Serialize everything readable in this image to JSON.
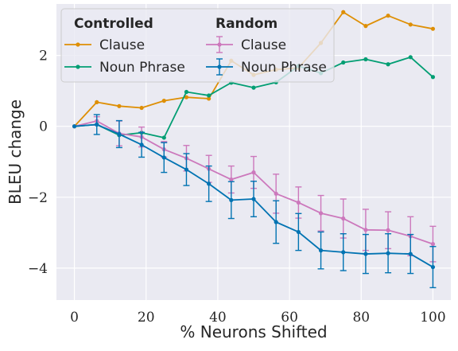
{
  "chart_data": {
    "type": "line",
    "xlabel": "% Neurons Shifted",
    "ylabel": "BLEU change",
    "xlim": [
      -5,
      105
    ],
    "ylim": [
      -4.9,
      3.45
    ],
    "xticks": [
      0,
      20,
      40,
      60,
      80,
      100
    ],
    "yticks": [
      -4,
      -2,
      0,
      2
    ],
    "grid": true,
    "legend": {
      "placement": "top-left",
      "group_titles": [
        "Controlled",
        "Random"
      ],
      "entries": [
        "Clause",
        "Noun Phrase",
        "Clause",
        "Noun Phrase"
      ]
    },
    "x": [
      0,
      6.25,
      12.5,
      18.75,
      25,
      31.25,
      37.5,
      43.75,
      50,
      56.25,
      62.5,
      68.75,
      75,
      81.25,
      87.5,
      93.75,
      100
    ],
    "series": [
      {
        "name": "Clause",
        "group": "Controlled",
        "color": "#de8f05",
        "values": [
          0.0,
          0.68,
          0.57,
          0.52,
          0.72,
          0.82,
          0.78,
          1.85,
          1.45,
          1.6,
          1.65,
          2.35,
          3.22,
          2.83,
          3.12,
          2.87,
          2.75
        ]
      },
      {
        "name": "Noun Phrase",
        "group": "Controlled",
        "color": "#029e73",
        "values": [
          0.0,
          0.05,
          -0.25,
          -0.18,
          -0.32,
          0.97,
          0.87,
          1.23,
          1.09,
          1.24,
          1.7,
          1.5,
          1.8,
          1.89,
          1.75,
          1.95,
          1.39
        ]
      },
      {
        "name": "Clause",
        "group": "Random",
        "color": "#cc78bc",
        "values": [
          0.0,
          0.15,
          -0.2,
          -0.3,
          -0.65,
          -0.9,
          -1.2,
          -1.5,
          -1.3,
          -1.9,
          -2.15,
          -2.45,
          -2.6,
          -2.92,
          -2.93,
          -3.1,
          -3.32
        ],
        "error": [
          0.0,
          0.12,
          0.35,
          0.28,
          0.22,
          0.36,
          0.38,
          0.38,
          0.45,
          0.55,
          0.44,
          0.5,
          0.55,
          0.58,
          0.52,
          0.55,
          0.5
        ]
      },
      {
        "name": "Noun Phrase",
        "group": "Random",
        "color": "#0173b2",
        "values": [
          0.0,
          0.05,
          -0.22,
          -0.52,
          -0.88,
          -1.22,
          -1.62,
          -2.08,
          -2.05,
          -2.7,
          -2.98,
          -3.5,
          -3.55,
          -3.6,
          -3.58,
          -3.6,
          -3.97
        ],
        "error": [
          0.0,
          0.28,
          0.38,
          0.35,
          0.42,
          0.45,
          0.5,
          0.52,
          0.5,
          0.6,
          0.52,
          0.52,
          0.52,
          0.55,
          0.55,
          0.55,
          0.58
        ]
      }
    ]
  }
}
